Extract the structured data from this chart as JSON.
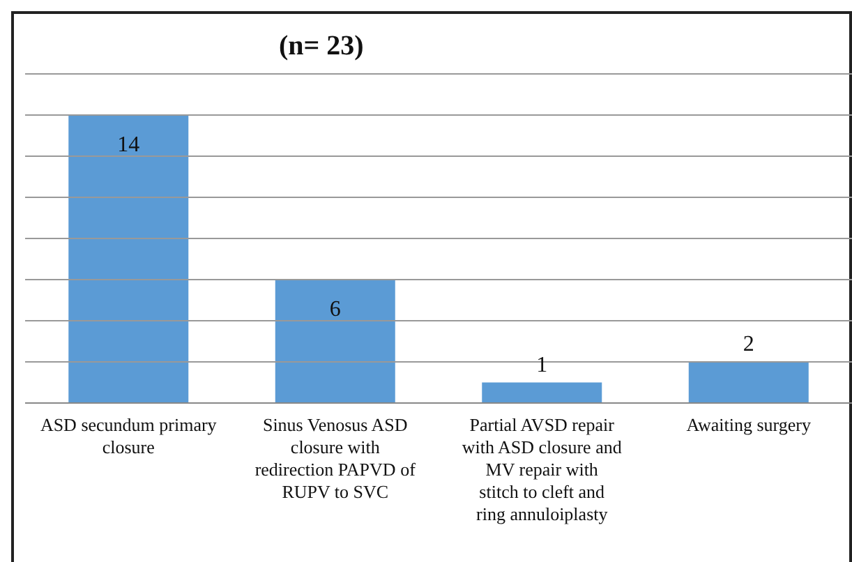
{
  "chart_data": {
    "type": "bar",
    "title": "(n= 23)",
    "categories": [
      "ASD secundum primary closure",
      "Sinus Venosus ASD closure with redirection PAPVD of RUPV to SVC",
      "Partial AVSD repair with ASD closure and MV repair with stitch to cleft and ring annuloiplasty",
      "Awaiting surgery"
    ],
    "values": [
      14,
      6,
      1,
      2
    ],
    "color": "#5b9bd5",
    "ylim": [
      0,
      16
    ],
    "yticks": [
      {
        "value": 0,
        "label": null
      },
      {
        "value": 2,
        "label": null
      },
      {
        "value": 4,
        "label": null
      },
      {
        "value": 6,
        "label": null
      },
      {
        "value": 8,
        "label": null
      },
      {
        "value": 10,
        "label": null
      },
      {
        "value": 12,
        "label": null
      },
      {
        "value": 14,
        "label": null
      },
      {
        "value": 16,
        "label": null
      }
    ],
    "tick_labels": "x",
    "grid": "y",
    "data_labels": true
  }
}
